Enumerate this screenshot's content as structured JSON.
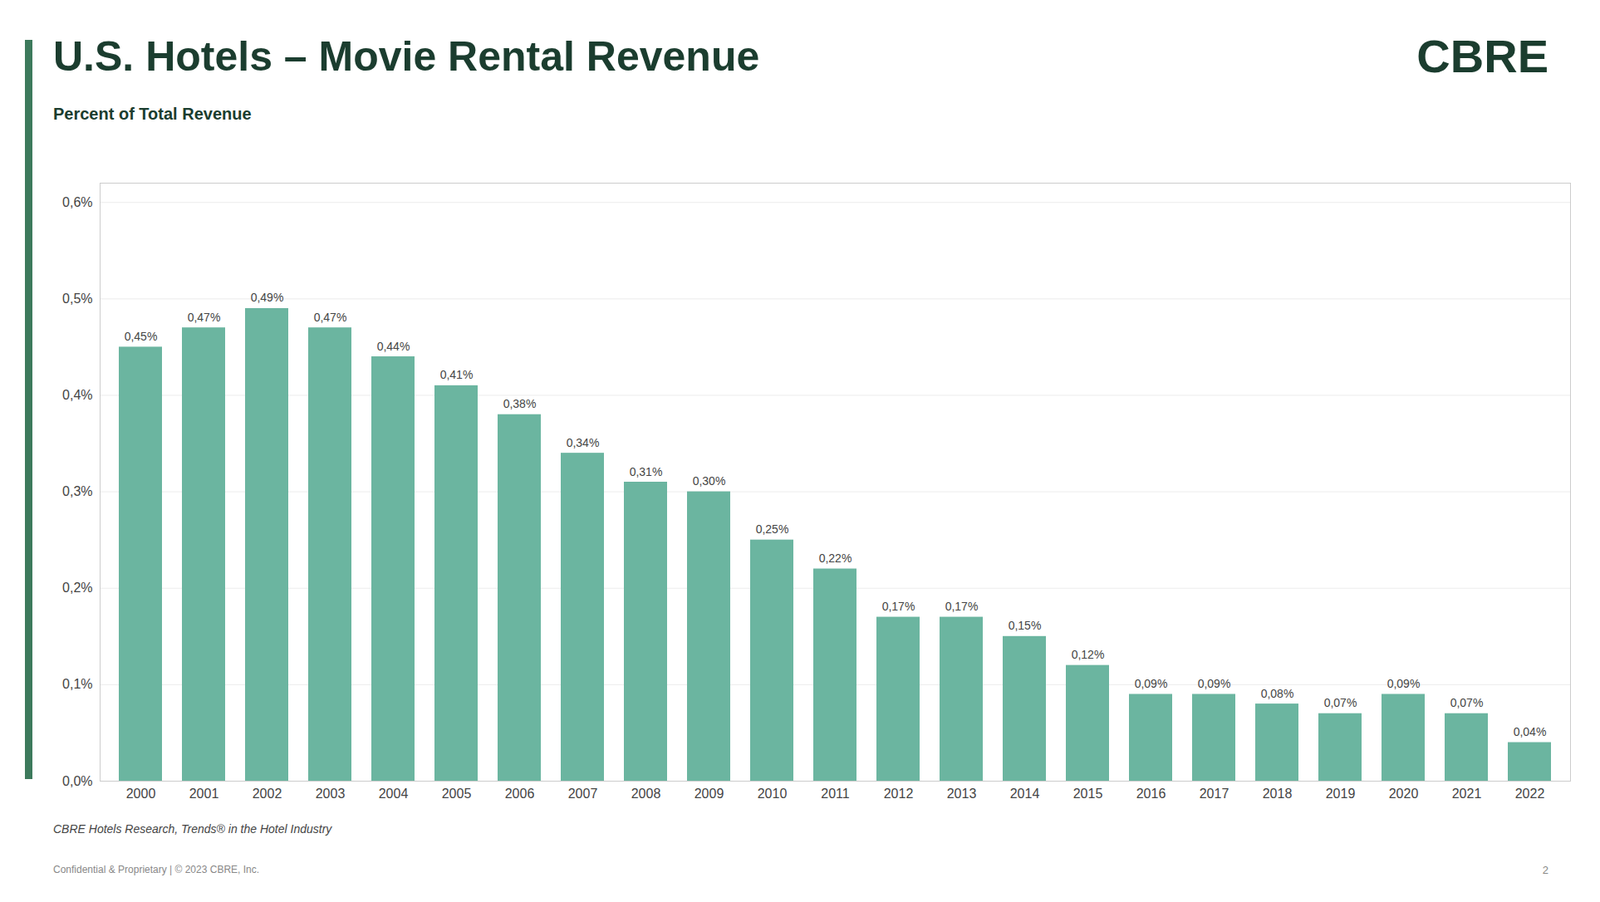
{
  "chart_data": {
    "type": "bar",
    "title": "U.S. Hotels – Movie Rental Revenue",
    "subtitle": "Percent of Total Revenue",
    "annotations": [
      "CBRE",
      "CBRE Hotels Research, Trends® in the Hotel Industry",
      "Confidential & Proprietary | © 2023 CBRE, Inc.",
      "2"
    ],
    "categories": [
      "2000",
      "2001",
      "2002",
      "2003",
      "2004",
      "2005",
      "2006",
      "2007",
      "2008",
      "2009",
      "2010",
      "2011",
      "2012",
      "2013",
      "2014",
      "2015",
      "2016",
      "2017",
      "2018",
      "2019",
      "2020",
      "2021",
      "2022"
    ],
    "values": [
      0.45,
      0.47,
      0.49,
      0.47,
      0.44,
      0.41,
      0.38,
      0.34,
      0.31,
      0.3,
      0.25,
      0.22,
      0.17,
      0.17,
      0.15,
      0.12,
      0.09,
      0.09,
      0.08,
      0.07,
      0.09,
      0.07,
      0.04
    ],
    "value_labels": [
      "0,45%",
      "0,47%",
      "0,49%",
      "0,47%",
      "0,44%",
      "0,41%",
      "0,38%",
      "0,34%",
      "0,31%",
      "0,30%",
      "0,25%",
      "0,22%",
      "0,17%",
      "0,17%",
      "0,15%",
      "0,12%",
      "0,09%",
      "0,09%",
      "0,08%",
      "0,07%",
      "0,09%",
      "0,07%",
      "0,04%"
    ],
    "color": "#6bb5a0",
    "ylim": [
      0,
      0.62
    ],
    "yticks": [
      {
        "value": 0.0,
        "label": "0,0%"
      },
      {
        "value": 0.1,
        "label": "0,1%"
      },
      {
        "value": 0.2,
        "label": "0,2%"
      },
      {
        "value": 0.3,
        "label": "0,3%"
      },
      {
        "value": 0.4,
        "label": "0,4%"
      },
      {
        "value": 0.5,
        "label": "0,5%"
      },
      {
        "value": 0.6,
        "label": "0,6%"
      }
    ],
    "grid": true,
    "data_labels": true
  }
}
